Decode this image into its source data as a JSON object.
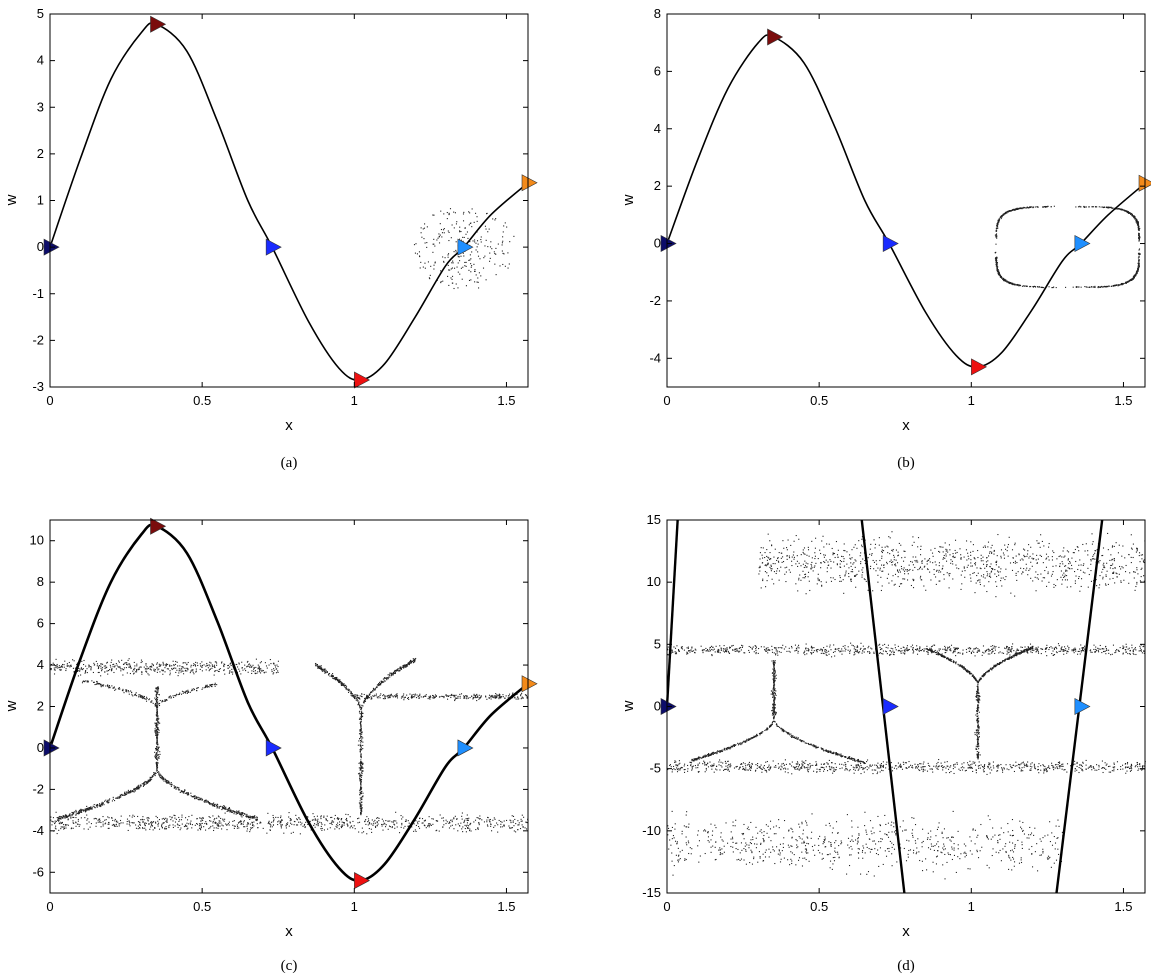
{
  "chart_data": [
    {
      "type": "line",
      "caption": "(a)",
      "xlabel": "x",
      "ylabel": "w",
      "xlim": [
        0,
        1.5708
      ],
      "ylim": [
        -3,
        5
      ],
      "xticks": [
        0,
        0.5,
        1,
        1.5
      ],
      "yticks": [
        -3,
        -2,
        -1,
        0,
        1,
        2,
        3,
        4,
        5
      ],
      "curve": {
        "shape": "sine-like",
        "x": [
          0,
          0.1,
          0.2,
          0.3,
          0.35,
          0.45,
          0.55,
          0.65,
          0.73,
          0.85,
          0.95,
          1.02,
          1.1,
          1.2,
          1.3,
          1.36,
          1.45,
          1.5708
        ],
        "y": [
          0,
          1.9,
          3.6,
          4.6,
          4.78,
          4.2,
          2.7,
          1.0,
          0.0,
          -1.6,
          -2.6,
          -2.85,
          -2.5,
          -1.5,
          -0.4,
          0.0,
          0.7,
          1.38
        ]
      },
      "markers": [
        {
          "x": 0,
          "y": 0,
          "color": "#0c0c6a"
        },
        {
          "x": 0.35,
          "y": 4.78,
          "color": "#7a0c0c"
        },
        {
          "x": 0.73,
          "y": 0,
          "color": "#1a2bff"
        },
        {
          "x": 1.02,
          "y": -2.85,
          "color": "#ee1111"
        },
        {
          "x": 1.36,
          "y": 0,
          "color": "#1f8fff"
        },
        {
          "x": 1.5708,
          "y": 1.38,
          "color": "#f38a1a"
        }
      ],
      "scatter_regions": [
        {
          "kind": "radial",
          "cx": 1.36,
          "cy": 0,
          "rx": 0.17,
          "ry": 0.9,
          "count": 260
        }
      ]
    },
    {
      "type": "line",
      "caption": "(b)",
      "xlabel": "x",
      "ylabel": "w",
      "xlim": [
        0,
        1.5708
      ],
      "ylim": [
        -5,
        8
      ],
      "xticks": [
        0,
        0.5,
        1,
        1.5
      ],
      "yticks": [
        -4,
        -2,
        0,
        2,
        4,
        6,
        8
      ],
      "curve": {
        "shape": "sine-like",
        "x": [
          0,
          0.1,
          0.2,
          0.3,
          0.35,
          0.45,
          0.55,
          0.65,
          0.73,
          0.85,
          0.95,
          1.02,
          1.1,
          1.2,
          1.3,
          1.36,
          1.45,
          1.5708
        ],
        "y": [
          0,
          2.9,
          5.4,
          7.0,
          7.2,
          6.3,
          4.1,
          1.5,
          0.0,
          -2.4,
          -3.9,
          -4.3,
          -3.8,
          -2.3,
          -0.6,
          0.0,
          1.0,
          2.1
        ]
      },
      "markers": [
        {
          "x": 0,
          "y": 0,
          "color": "#0c0c6a"
        },
        {
          "x": 0.35,
          "y": 7.2,
          "color": "#7a0c0c"
        },
        {
          "x": 0.73,
          "y": 0,
          "color": "#1a2bff"
        },
        {
          "x": 1.02,
          "y": -4.3,
          "color": "#ee1111"
        },
        {
          "x": 1.36,
          "y": 0,
          "color": "#1f8fff"
        },
        {
          "x": 1.5708,
          "y": 2.1,
          "color": "#f38a1a"
        }
      ],
      "scatter_regions": [
        {
          "kind": "loop",
          "x0": 1.08,
          "x1": 1.55,
          "y0": -1.5,
          "y1": 1.3,
          "count": 900
        }
      ]
    },
    {
      "type": "line",
      "caption": "(c)",
      "xlabel": "x",
      "ylabel": "w",
      "xlim": [
        0,
        1.5708
      ],
      "ylim": [
        -7,
        11
      ],
      "xticks": [
        0,
        0.5,
        1,
        1.5
      ],
      "yticks": [
        -6,
        -4,
        -2,
        0,
        2,
        4,
        6,
        8,
        10
      ],
      "curve": {
        "shape": "sine-like",
        "x": [
          0,
          0.1,
          0.2,
          0.3,
          0.35,
          0.45,
          0.55,
          0.65,
          0.73,
          0.85,
          0.95,
          1.02,
          1.1,
          1.2,
          1.3,
          1.36,
          1.45,
          1.5708
        ],
        "y": [
          0,
          4.3,
          8.0,
          10.3,
          10.7,
          9.4,
          6.1,
          2.2,
          0.0,
          -3.6,
          -5.8,
          -6.4,
          -5.6,
          -3.4,
          -0.9,
          0.0,
          1.6,
          3.1
        ]
      },
      "markers": [
        {
          "x": 0,
          "y": 0,
          "color": "#0c0c6a"
        },
        {
          "x": 0.35,
          "y": 10.7,
          "color": "#7a0c0c"
        },
        {
          "x": 0.73,
          "y": 0,
          "color": "#1a2bff"
        },
        {
          "x": 1.02,
          "y": -6.4,
          "color": "#ee1111"
        },
        {
          "x": 1.36,
          "y": 0,
          "color": "#1f8fff"
        },
        {
          "x": 1.5708,
          "y": 3.1,
          "color": "#f38a1a"
        }
      ],
      "scatter_regions": [
        {
          "kind": "band",
          "x0": 0,
          "x1": 0.75,
          "yc": 3.9,
          "spread": 0.5,
          "count": 500
        },
        {
          "kind": "band",
          "x0": 0,
          "x1": 1.5708,
          "yc": -3.6,
          "spread": 0.6,
          "count": 900
        },
        {
          "kind": "band",
          "x0": 1.0,
          "x1": 1.5708,
          "yc": 2.5,
          "spread": 0.2,
          "count": 300
        },
        {
          "kind": "fan",
          "x0": 0.02,
          "x1": 0.68,
          "apex_x": 0.35,
          "apex_y": -1.0,
          "base_y": -3.4,
          "count": 600
        },
        {
          "kind": "fan",
          "x0": 0.1,
          "x1": 0.55,
          "apex_x": 0.35,
          "apex_y": 2.0,
          "base_y": 3.3,
          "count": 200
        },
        {
          "kind": "fan",
          "x0": 0.87,
          "x1": 1.2,
          "apex_x": 1.02,
          "apex_y": 1.8,
          "base_y": 4.3,
          "count": 400
        },
        {
          "kind": "stem",
          "x": 0.35,
          "y0": -1.0,
          "y1": 3.0,
          "count": 250
        },
        {
          "kind": "stem",
          "x": 1.02,
          "y0": -3.2,
          "y1": 1.8,
          "count": 250
        }
      ]
    },
    {
      "type": "line",
      "caption": "(d)",
      "xlabel": "x",
      "ylabel": "w",
      "xlim": [
        0,
        1.5708
      ],
      "ylim": [
        -15,
        15
      ],
      "xticks": [
        0,
        0.5,
        1,
        1.5
      ],
      "yticks": [
        -15,
        -10,
        -5,
        0,
        5,
        10,
        15
      ],
      "lines": [
        {
          "x": [
            0.0,
            0.035
          ],
          "y": [
            0,
            15
          ]
        },
        {
          "x": [
            0.64,
            0.78
          ],
          "y": [
            15,
            -15
          ]
        },
        {
          "x": [
            1.28,
            1.43
          ],
          "y": [
            -15,
            15
          ]
        }
      ],
      "markers": [
        {
          "x": 0,
          "y": 0,
          "color": "#0c0c6a"
        },
        {
          "x": 0.73,
          "y": 0,
          "color": "#1a2bff"
        },
        {
          "x": 1.36,
          "y": 0,
          "color": "#1f8fff"
        }
      ],
      "scatter_regions": [
        {
          "kind": "band",
          "x0": 0,
          "x1": 1.5708,
          "yc": 4.6,
          "spread": 0.6,
          "count": 800
        },
        {
          "kind": "band",
          "x0": 0,
          "x1": 1.5708,
          "yc": -4.8,
          "spread": 0.7,
          "count": 800
        },
        {
          "kind": "band",
          "x0": 0.3,
          "x1": 1.5708,
          "yc": 11.5,
          "spread": 3.0,
          "count": 1000
        },
        {
          "kind": "band",
          "x0": 0,
          "x1": 1.3,
          "yc": -11,
          "spread": 3.0,
          "count": 700
        },
        {
          "kind": "fan",
          "x0": 0.08,
          "x1": 0.65,
          "apex_x": 0.35,
          "apex_y": -1.0,
          "base_y": -4.5,
          "count": 450
        },
        {
          "kind": "fan",
          "x0": 0.85,
          "x1": 1.2,
          "apex_x": 1.02,
          "apex_y": 1.8,
          "base_y": 4.8,
          "count": 450
        },
        {
          "kind": "stem",
          "x": 0.35,
          "y0": -1.0,
          "y1": 3.8,
          "count": 200
        },
        {
          "kind": "stem",
          "x": 1.02,
          "y0": -4.2,
          "y1": 1.8,
          "count": 200
        }
      ]
    }
  ]
}
